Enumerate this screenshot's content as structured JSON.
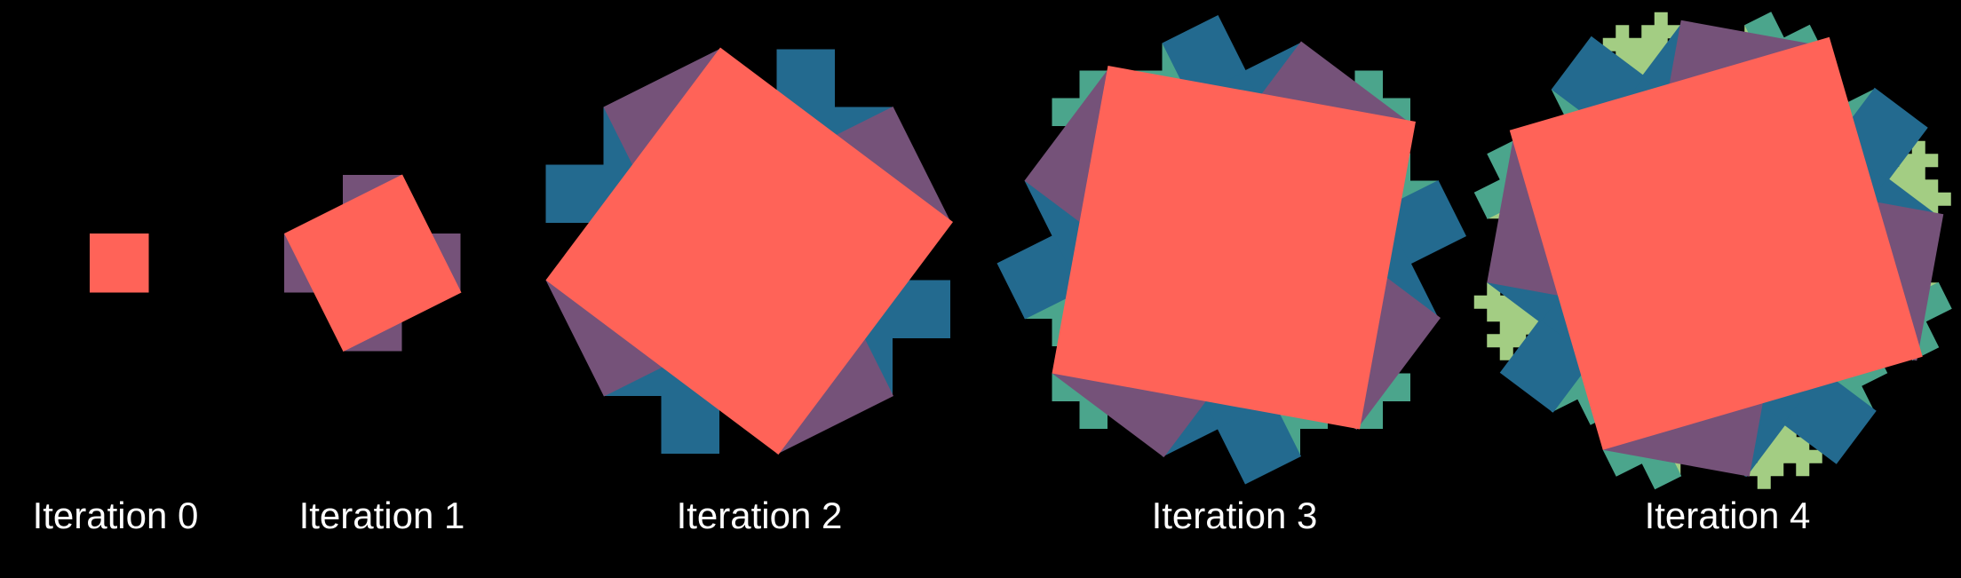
{
  "colors": {
    "background": "#000000",
    "seed": "#ff6358",
    "iteration_1": "#755279",
    "iteration_2": "#236a8f",
    "iteration_3": "#4ba58c",
    "iteration_4": "#a3cd83",
    "label_text": "#ffffff"
  },
  "panels": [
    {
      "label": "Iteration 0"
    },
    {
      "label": "Iteration 1"
    },
    {
      "label": "Iteration 2"
    },
    {
      "label": "Iteration 3"
    },
    {
      "label": "Iteration 4"
    }
  ]
}
